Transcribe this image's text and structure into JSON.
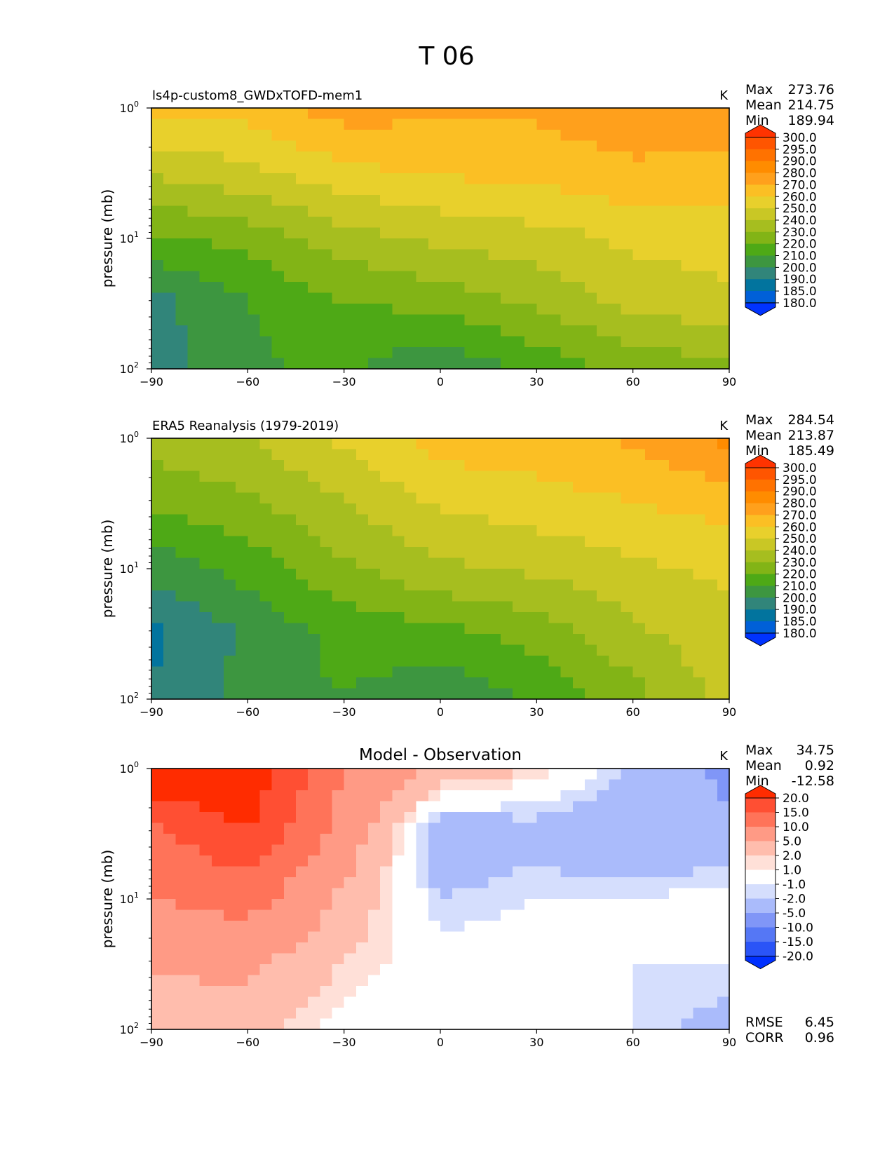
{
  "figure_title": "T 06",
  "chart_data": [
    {
      "type": "heatmap",
      "title": "ls4p-custom8_GWDxTOFD-mem1",
      "units": "K",
      "ylabel": "pressure (mb)",
      "xlabel": "",
      "xlim": [
        -90,
        90
      ],
      "xticks": [
        "−90",
        "−60",
        "−30",
        "0",
        "30",
        "60",
        "90"
      ],
      "ylim_mb": [
        100,
        1
      ],
      "yscale": "log",
      "ytick_base": "10",
      "ytick_exps": [
        "0",
        "1",
        "2"
      ],
      "stats": [
        {
          "label": "Max",
          "value": "273.76"
        },
        {
          "label": "Mean",
          "value": "214.75"
        },
        {
          "label": "Min",
          "value": "189.94"
        }
      ],
      "colorbar": {
        "levels": [
          "300.0",
          "295.0",
          "290.0",
          "280.0",
          "270.0",
          "260.0",
          "250.0",
          "240.0",
          "230.0",
          "220.0",
          "210.0",
          "200.0",
          "190.0",
          "185.0",
          "180.0"
        ],
        "colors": [
          "#ff3300",
          "#ff5500",
          "#ff7200",
          "#ff8c00",
          "#ffa01c",
          "#fbbf24",
          "#e8d02c",
          "#c9c725",
          "#a6be1f",
          "#82b416",
          "#4ea916",
          "#3d9640",
          "#31857a",
          "#02749e",
          "#0060d8",
          "#0033ff"
        ]
      },
      "grid_lat": [
        -90,
        -60,
        -30,
        0,
        30,
        60,
        90
      ],
      "grid_levels_mb": [
        1,
        3,
        10,
        30,
        100
      ],
      "values": [
        [
          262,
          264,
          275,
          272,
          272,
          278,
          278
        ],
        [
          242,
          248,
          258,
          262,
          264,
          268,
          266
        ],
        [
          218,
          224,
          236,
          242,
          246,
          252,
          254
        ],
        [
          196,
          210,
          220,
          224,
          232,
          244,
          248
        ],
        [
          195,
          208,
          212,
          201,
          214,
          222,
          228
        ]
      ]
    },
    {
      "type": "heatmap",
      "title": "ERA5 Reanalysis (1979-2019)",
      "units": "K",
      "ylabel": "pressure (mb)",
      "xlabel": "",
      "xlim": [
        -90,
        90
      ],
      "xticks": [
        "−90",
        "−60",
        "−30",
        "0",
        "30",
        "60",
        "90"
      ],
      "ylim_mb": [
        100,
        1
      ],
      "yscale": "log",
      "ytick_base": "10",
      "ytick_exps": [
        "0",
        "1",
        "2"
      ],
      "stats": [
        {
          "label": "Max",
          "value": "284.54"
        },
        {
          "label": "Mean",
          "value": "213.87"
        },
        {
          "label": "Min",
          "value": "185.49"
        }
      ],
      "colorbar": {
        "levels": [
          "300.0",
          "295.0",
          "290.0",
          "280.0",
          "270.0",
          "260.0",
          "250.0",
          "240.0",
          "230.0",
          "220.0",
          "210.0",
          "200.0",
          "190.0",
          "185.0",
          "180.0"
        ],
        "colors": [
          "#ff3300",
          "#ff5500",
          "#ff7200",
          "#ff8c00",
          "#ffa01c",
          "#fbbf24",
          "#e8d02c",
          "#c9c725",
          "#a6be1f",
          "#82b416",
          "#4ea916",
          "#3d9640",
          "#31857a",
          "#02749e",
          "#0060d8",
          "#0033ff"
        ]
      },
      "grid_lat": [
        -90,
        -60,
        -30,
        0,
        30,
        60,
        90
      ],
      "grid_levels_mb": [
        1,
        3,
        10,
        30,
        100
      ],
      "values": [
        [
          235,
          240,
          252,
          265,
          266,
          272,
          283
        ],
        [
          222,
          228,
          240,
          252,
          256,
          260,
          265
        ],
        [
          204,
          214,
          228,
          238,
          242,
          248,
          252
        ],
        [
          188,
          202,
          214,
          218,
          224,
          238,
          248
        ],
        [
          190,
          204,
          210,
          202,
          212,
          226,
          244
        ]
      ]
    },
    {
      "type": "heatmap",
      "title": "Model - Observation",
      "units": "K",
      "ylabel": "pressure (mb)",
      "xlabel": "",
      "xlim": [
        -90,
        90
      ],
      "xticks": [
        "−90",
        "−60",
        "−30",
        "0",
        "30",
        "60",
        "90"
      ],
      "ylim_mb": [
        100,
        1
      ],
      "yscale": "log",
      "ytick_base": "10",
      "ytick_exps": [
        "0",
        "1",
        "2"
      ],
      "stats": [
        {
          "label": "Max",
          "value": "34.75"
        },
        {
          "label": "Mean",
          "value": "0.92"
        },
        {
          "label": "Min",
          "value": "-12.58"
        }
      ],
      "extra_stats": [
        {
          "label": "RMSE",
          "value": "6.45"
        },
        {
          "label": "CORR",
          "value": "0.96"
        }
      ],
      "colorbar": {
        "levels": [
          "20.0",
          "15.0",
          "10.0",
          "5.0",
          "2.0",
          "1.0",
          "-1.0",
          "-2.0",
          "-5.0",
          "-10.0",
          "-15.0",
          "-20.0"
        ],
        "colors": [
          "#ff2c00",
          "#ff4f33",
          "#ff7359",
          "#ff9a85",
          "#ffbdad",
          "#ffe0d8",
          "#ffffff",
          "#d5defd",
          "#aabbfb",
          "#8096f7",
          "#5577f5",
          "#2a54f7",
          "#0030ff"
        ]
      },
      "grid_lat": [
        -90,
        -60,
        -30,
        0,
        30,
        60,
        90
      ],
      "grid_levels_mb": [
        1,
        3,
        10,
        30,
        100
      ],
      "values": [
        [
          26,
          24,
          10,
          4,
          2,
          -2,
          -6
        ],
        [
          14,
          20,
          8,
          -4,
          -3,
          -5,
          -4
        ],
        [
          10,
          12,
          4,
          -2,
          -1,
          -1,
          0
        ],
        [
          6,
          6,
          2,
          0,
          0,
          -1,
          -1
        ],
        [
          2,
          3,
          0,
          -1,
          0,
          -1,
          -3
        ]
      ]
    }
  ]
}
